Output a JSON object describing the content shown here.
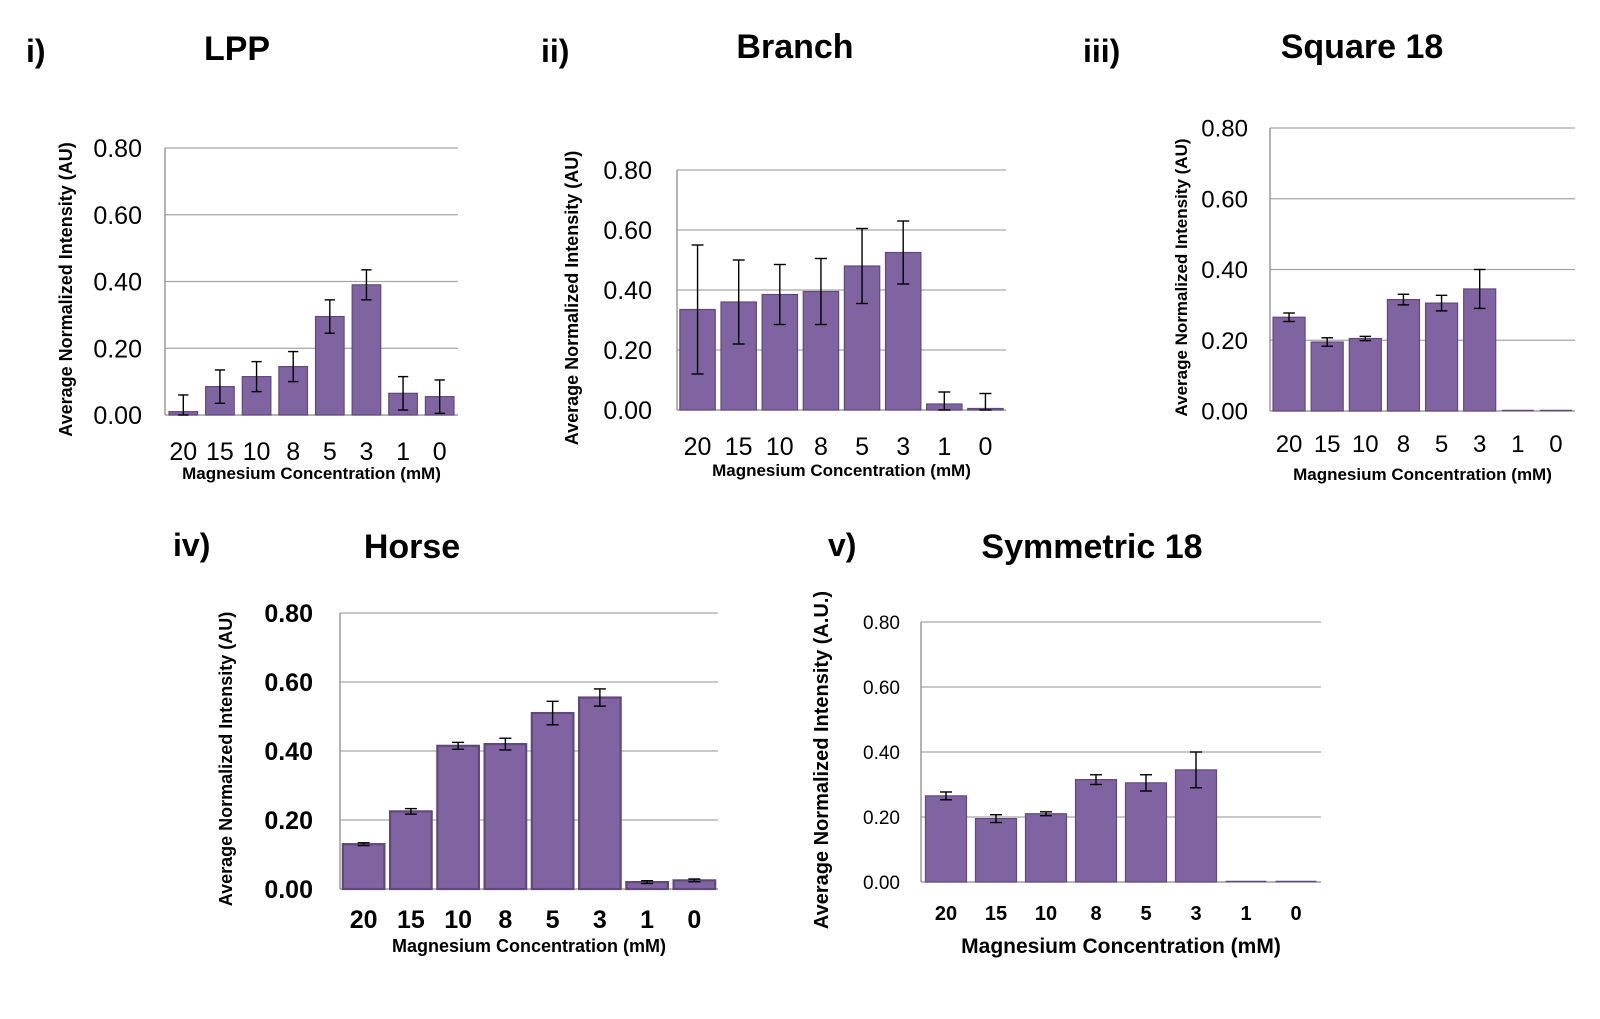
{
  "chart_data": [
    {
      "type": "bar",
      "panel": "i)",
      "title": "LPP",
      "xlabel": "Magnesium Concentration (mM)",
      "ylabel": "Average Normalized Intensity (AU)",
      "categories": [
        "20",
        "15",
        "10",
        "8",
        "5",
        "3",
        "1",
        "0"
      ],
      "values": [
        0.01,
        0.085,
        0.115,
        0.145,
        0.295,
        0.39,
        0.065,
        0.055
      ],
      "errors": [
        0.05,
        0.05,
        0.045,
        0.045,
        0.05,
        0.045,
        0.05,
        0.05
      ],
      "ylim": [
        0,
        0.8
      ],
      "yticks": [
        "0.00",
        "0.20",
        "0.40",
        "0.60",
        "0.80"
      ],
      "grid": true,
      "color": "#8064a2"
    },
    {
      "type": "bar",
      "panel": "ii)",
      "title": "Branch",
      "xlabel": "Magnesium Concentration (mM)",
      "ylabel": "Average Normalized Intensity (AU)",
      "categories": [
        "20",
        "15",
        "10",
        "8",
        "5",
        "3",
        "1",
        "0"
      ],
      "values": [
        0.335,
        0.36,
        0.385,
        0.395,
        0.48,
        0.525,
        0.02,
        0.005
      ],
      "errors": [
        0.215,
        0.14,
        0.1,
        0.11,
        0.125,
        0.105,
        0.04,
        0.05
      ],
      "ylim": [
        0,
        0.8
      ],
      "yticks": [
        "0.00",
        "0.20",
        "0.40",
        "0.60",
        "0.80"
      ],
      "grid": true,
      "color": "#8064a2"
    },
    {
      "type": "bar",
      "panel": "iii)",
      "title": "Square 18",
      "xlabel": "Magnesium Concentration (mM)",
      "ylabel": "Average Normalized Intensity (AU)",
      "categories": [
        "20",
        "15",
        "10",
        "8",
        "5",
        "3",
        "1",
        "0"
      ],
      "values": [
        0.265,
        0.195,
        0.205,
        0.315,
        0.305,
        0.345,
        0,
        0
      ],
      "errors": [
        0.012,
        0.012,
        0.006,
        0.015,
        0.022,
        0.055,
        0,
        0
      ],
      "ylim": [
        0,
        0.8
      ],
      "yticks": [
        "0.00",
        "0.20",
        "0.40",
        "0.60",
        "0.80"
      ],
      "grid": true,
      "color": "#8064a2"
    },
    {
      "type": "bar",
      "panel": "iv)",
      "title": "Horse",
      "xlabel": "Magnesium Concentration (mM)",
      "ylabel": "Average Normalized Intensity (AU)",
      "categories": [
        "20",
        "15",
        "10",
        "8",
        "5",
        "3",
        "1",
        "0"
      ],
      "values": [
        0.13,
        0.225,
        0.415,
        0.42,
        0.51,
        0.555,
        0.02,
        0.025
      ],
      "errors": [
        0.004,
        0.008,
        0.01,
        0.017,
        0.034,
        0.025,
        0.004,
        0.004
      ],
      "ylim": [
        0,
        0.8
      ],
      "yticks": [
        "0.00",
        "0.20",
        "0.40",
        "0.60",
        "0.80"
      ],
      "grid": true,
      "color": "#8064a2"
    },
    {
      "type": "bar",
      "panel": "v)",
      "title": "Symmetric 18",
      "xlabel": "Magnesium Concentration (mM)",
      "ylabel": "Average Normalized Intensity (A.U.)",
      "categories": [
        "20",
        "15",
        "10",
        "8",
        "5",
        "3",
        "1",
        "0"
      ],
      "values": [
        0.265,
        0.195,
        0.21,
        0.315,
        0.305,
        0.345,
        0,
        0
      ],
      "errors": [
        0.012,
        0.012,
        0.006,
        0.015,
        0.025,
        0.055,
        0,
        0
      ],
      "ylim": [
        0,
        0.8
      ],
      "yticks": [
        "0.00",
        "0.20",
        "0.40",
        "0.60",
        "0.80"
      ],
      "grid": true,
      "color": "#8064a2"
    }
  ]
}
